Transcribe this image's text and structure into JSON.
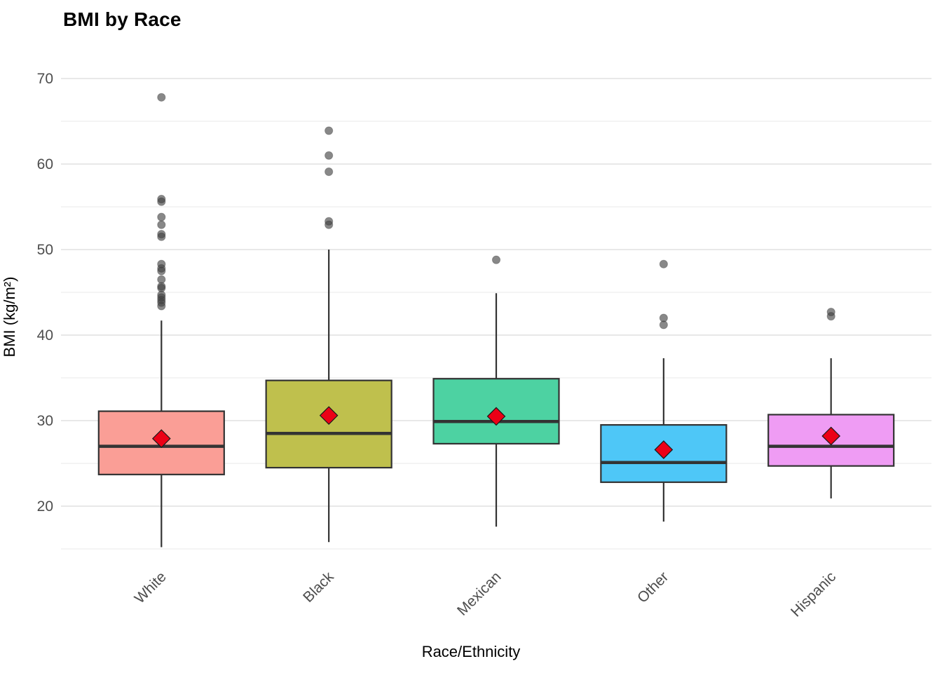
{
  "chart_data": {
    "type": "boxplot",
    "title": "BMI by Race",
    "xlabel": "Race/Ethnicity",
    "ylabel": "BMI (kg/m²)",
    "legend": "none",
    "grid": "on",
    "y_axis": {
      "major_ticks": [
        70,
        60,
        50,
        40,
        30,
        20
      ],
      "minor_ticks": [
        65,
        55,
        45,
        35,
        25,
        15
      ],
      "range": [
        13.5,
        71
      ]
    },
    "categories": [
      "White",
      "Black",
      "Mexican",
      "Other",
      "Hispanic"
    ],
    "mean_marker": {
      "shape": "diamond",
      "color": "#ec0016",
      "outline": "#1a1a1a"
    },
    "style": {
      "box_border_color": "#333333",
      "median_color": "#333333",
      "whisker_color": "#333333",
      "outlier_color": "#3f3f3f",
      "major_grid_color": "#e8e8e8",
      "minor_grid_color": "#f1f1f1"
    },
    "series": [
      {
        "name": "White",
        "fill": "#fa9e96",
        "whisker_low": 15.2,
        "q1": 23.7,
        "median": 27.0,
        "q3": 31.1,
        "whisker_high": 41.7,
        "mean": 27.9,
        "outliers": [
          67.8,
          55.9,
          55.6,
          53.8,
          52.9,
          51.8,
          51.5,
          48.3,
          47.8,
          47.5,
          46.5,
          45.7,
          45.5,
          44.7,
          44.4,
          44.1,
          43.8,
          43.4
        ]
      },
      {
        "name": "Black",
        "fill": "#bfc04d",
        "whisker_low": 15.8,
        "q1": 24.5,
        "median": 28.5,
        "q3": 34.7,
        "whisker_high": 50.0,
        "mean": 30.6,
        "outliers": [
          63.9,
          61.0,
          59.1,
          53.3,
          52.9
        ]
      },
      {
        "name": "Mexican",
        "fill": "#4dd2a2",
        "whisker_low": 17.6,
        "q1": 27.3,
        "median": 29.9,
        "q3": 34.9,
        "whisker_high": 44.9,
        "mean": 30.5,
        "outliers": [
          48.8
        ]
      },
      {
        "name": "Other",
        "fill": "#4ec7f7",
        "whisker_low": 18.2,
        "q1": 22.8,
        "median": 25.1,
        "q3": 29.5,
        "whisker_high": 37.3,
        "mean": 26.6,
        "outliers": [
          48.3,
          42.0,
          41.2
        ]
      },
      {
        "name": "Hispanic",
        "fill": "#ef9cf4",
        "whisker_low": 20.9,
        "q1": 24.7,
        "median": 27.0,
        "q3": 30.7,
        "whisker_high": 37.3,
        "mean": 28.2,
        "outliers": [
          42.7,
          42.2
        ]
      }
    ]
  }
}
